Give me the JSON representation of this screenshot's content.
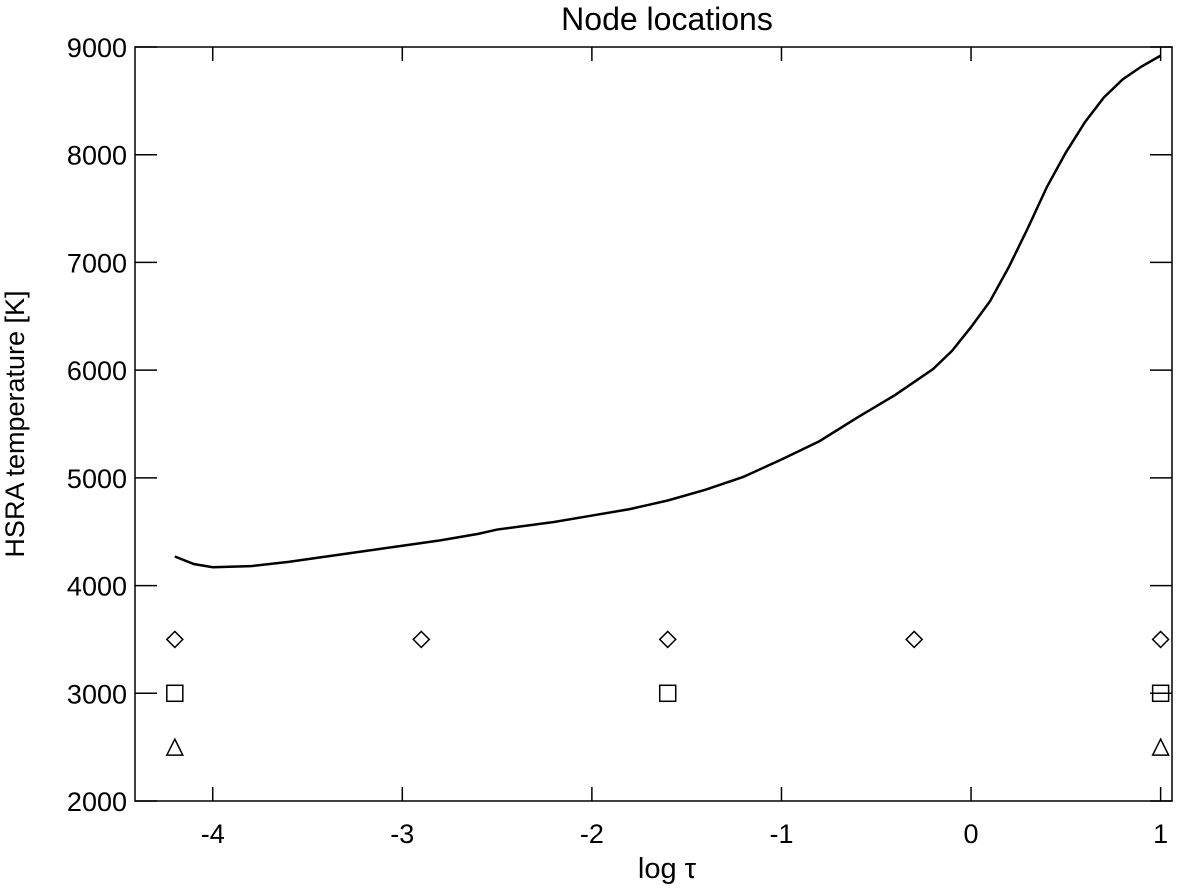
{
  "chart_data": {
    "type": "line",
    "title": "Node locations",
    "x_label": "log τ",
    "y_label": "HSRA temperature [K]",
    "xlim": [
      -4.41,
      1.06
    ],
    "ylim": [
      2000,
      9000
    ],
    "xticks": [
      -4,
      -3,
      -2,
      -1,
      0,
      1
    ],
    "yticks": [
      2000,
      3000,
      4000,
      5000,
      6000,
      7000,
      8000,
      9000
    ],
    "color": "#000000",
    "series": [
      {
        "style": "line",
        "x": [
          -4.2,
          -4.1,
          -4.0,
          -3.8,
          -3.6,
          -3.4,
          -3.2,
          -3.0,
          -2.8,
          -2.6,
          -2.5,
          -2.2,
          -2.0,
          -1.8,
          -1.7,
          -1.6,
          -1.4,
          -1.2,
          -1.0,
          -0.8,
          -0.6,
          -0.4,
          -0.2,
          -0.1,
          0.0,
          0.1,
          0.2,
          0.3,
          0.4,
          0.5,
          0.6,
          0.7,
          0.8,
          0.9,
          1.0
        ],
        "values": [
          4270,
          4200,
          4170,
          4180,
          4220,
          4270,
          4320,
          4370,
          4420,
          4480,
          4520,
          4590,
          4650,
          4710,
          4750,
          4790,
          4890,
          5010,
          5170,
          5340,
          5560,
          5770,
          6010,
          6180,
          6400,
          6640,
          6960,
          7320,
          7700,
          8020,
          8300,
          8530,
          8700,
          8820,
          8920
        ]
      },
      {
        "style": "diamond",
        "x": [
          -4.2,
          -2.9,
          -1.6,
          -0.3,
          1.0
        ],
        "values": [
          3500,
          3500,
          3500,
          3500,
          3500
        ]
      },
      {
        "style": "square",
        "x": [
          -4.2,
          -1.6,
          1.0
        ],
        "values": [
          3000,
          3000,
          3000
        ]
      },
      {
        "style": "triangle",
        "x": [
          -4.2,
          1.0
        ],
        "values": [
          2500,
          2500
        ]
      }
    ]
  }
}
